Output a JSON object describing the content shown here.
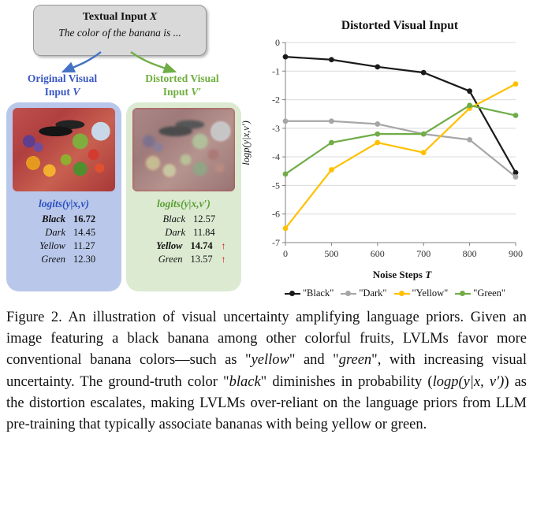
{
  "colors": {
    "textual_box_bg": "#d9d9d9",
    "original_panel_bg": "#b9c7ea",
    "distorted_panel_bg": "#dcead2",
    "blue_label": "#3a57c4",
    "green_label": "#6fae3e",
    "red_arrow": "#e00000",
    "arrow_blue": "#4472c4",
    "arrow_green": "#70ad47"
  },
  "figure": {
    "up_arrow_glyph": "↑",
    "textual_input": {
      "title_text": "Textual Input",
      "title_var": "X",
      "text": "The color of the banana is ..."
    },
    "original": {
      "label_line1": "Original Visual",
      "label_line2": "Input",
      "label_var": "V",
      "logits_title": "logits(y|x,v)",
      "rows": [
        {
          "label": "Black",
          "value": "16.72",
          "bold": true,
          "arrow": false
        },
        {
          "label": "Dark",
          "value": "14.45",
          "bold": false,
          "arrow": false
        },
        {
          "label": "Yellow",
          "value": "11.27",
          "bold": false,
          "arrow": false
        },
        {
          "label": "Green",
          "value": "12.30",
          "bold": false,
          "arrow": false
        }
      ]
    },
    "distorted": {
      "label_line1": "Distorted Visual",
      "label_line2": "Input",
      "label_var": "V′",
      "logits_title": "logits(y|x,v′)",
      "rows": [
        {
          "label": "Black",
          "value": "12.57",
          "bold": false,
          "arrow": false
        },
        {
          "label": "Dark",
          "value": "11.84",
          "bold": false,
          "arrow": false
        },
        {
          "label": "Yellow",
          "value": "14.74",
          "bold": true,
          "arrow": true
        },
        {
          "label": "Green",
          "value": "13.57",
          "bold": false,
          "arrow": true
        }
      ]
    }
  },
  "chart_data": {
    "type": "line",
    "title": "Distorted Visual Input",
    "xlabel": "Noise Steps",
    "xlabel_var": "T",
    "ylabel": "logp(y|x,v′)",
    "categories": [
      "0",
      "500",
      "600",
      "700",
      "800",
      "900"
    ],
    "ylim": [
      -7,
      0
    ],
    "grid": true,
    "legend_position": "bottom",
    "series": [
      {
        "name": "Black",
        "legend": "\"Black\"",
        "color": "#1a1a1a",
        "values": [
          -0.5,
          -0.6,
          -0.85,
          -1.05,
          -1.7,
          -4.55
        ]
      },
      {
        "name": "Dark",
        "legend": "\"Dark\"",
        "color": "#a6a6a6",
        "values": [
          -2.75,
          -2.75,
          -2.85,
          -3.2,
          -3.4,
          -4.7
        ]
      },
      {
        "name": "Yellow",
        "legend": "\"Yellow\"",
        "color": "#ffc000",
        "values": [
          -6.5,
          -4.45,
          -3.5,
          -3.85,
          -2.3,
          -1.45
        ]
      },
      {
        "name": "Green",
        "legend": "\"Green\"",
        "color": "#70ad47",
        "values": [
          -4.6,
          -3.5,
          -3.2,
          -3.2,
          -2.2,
          -2.55
        ]
      }
    ]
  },
  "caption": {
    "segments": [
      {
        "t": "Figure 2. An illustration of visual uncertainty amplifying language priors. Given an image featuring a black banana among other colorful fruits, LVLMs favor more conventional banana colors—such as \"",
        "i": false
      },
      {
        "t": "yellow",
        "i": true
      },
      {
        "t": "\" and \"",
        "i": false
      },
      {
        "t": "green",
        "i": true
      },
      {
        "t": "\", with increasing visual uncertainty. The ground-truth color \"",
        "i": false
      },
      {
        "t": "black",
        "i": true
      },
      {
        "t": "\" diminishes in probability (",
        "i": false
      },
      {
        "t": "logp(y|x, v′)",
        "i": true
      },
      {
        "t": ") as the distortion escalates, making LVLMs over-reliant on the language priors from LLM pre-training that typically associate bananas with being yellow or green.",
        "i": false
      }
    ]
  }
}
